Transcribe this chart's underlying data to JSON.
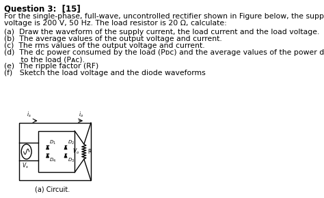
{
  "title": "Question 3:  [15]",
  "background_color": "#ffffff",
  "text_color": "#000000",
  "body_lines": [
    "For the single-phase, full-wave, uncontrolled rectifier shown in Figure below, the supply",
    "voltage is 200 V, 50 Hz. The load resistor is 20 Ω, calculate:"
  ],
  "items": [
    "(a)  Draw the waveform of the supply current, the load current and the load voltage.",
    "(b)  The average values of the output voltage and current.",
    "(c)  The rms values of the output voltage and current.",
    "(d)  The dc power consumed by the load (Pᴅᴄ) and the average values of the power delivered",
    "       to the load (Pᴀᴄ).",
    "(e)  The ripple factor (RF)",
    "(f)   Sketch the load voltage and the diode waveforms"
  ],
  "caption": "(a) Circuit.",
  "font_size_title": 8.5,
  "font_size_body": 7.8,
  "font_size_circuit": 5.5,
  "figsize": [
    4.74,
    2.9
  ],
  "dpi": 100
}
